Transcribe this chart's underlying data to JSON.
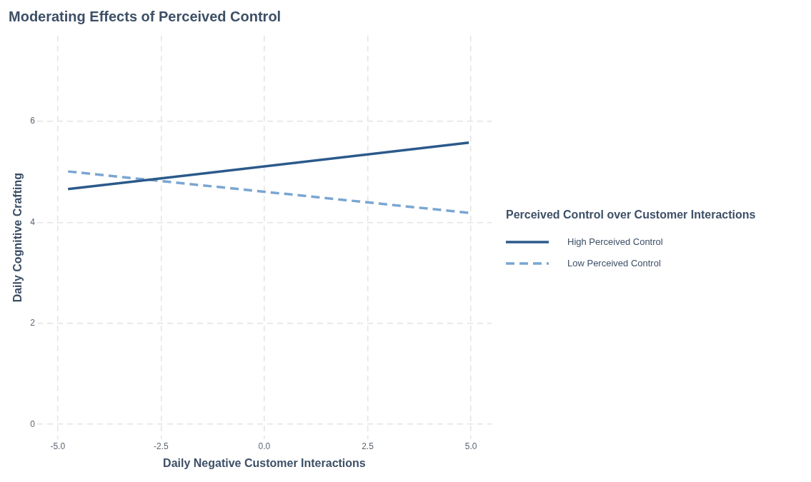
{
  "chart_data": {
    "type": "line",
    "title": "Moderating Effects of Perceived Control",
    "xlabel": "Daily Negative Customer Interactions",
    "ylabel": "Daily Cognitive Crafting",
    "legend_title": "Perceived Control over Customer Interactions",
    "x": [
      -4.75,
      4.95
    ],
    "series": [
      {
        "name": "High Perceived Control",
        "color": "#2b5a8a",
        "values": [
          4.66,
          5.58
        ],
        "line_style": "solid"
      },
      {
        "name": "Low Perceived Control",
        "color": "#7aa6d2",
        "values": [
          5.01,
          4.19
        ],
        "line_style": "dashed"
      }
    ],
    "xlim": [
      -5.5,
      5.5
    ],
    "ylim": [
      -0.3,
      7.7
    ],
    "xticks": [
      {
        "value": -5,
        "label": "-5.0"
      },
      {
        "value": -2.5,
        "label": "-2.5"
      },
      {
        "value": 0,
        "label": "0.0"
      },
      {
        "value": 2.5,
        "label": "2.5"
      },
      {
        "value": 5,
        "label": "5.0"
      }
    ],
    "yticks": [
      0,
      2,
      4,
      6
    ],
    "grid": true,
    "legend": "right",
    "marker": "none"
  }
}
